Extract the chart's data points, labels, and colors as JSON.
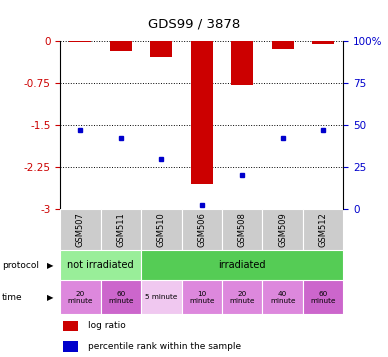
{
  "title": "GDS99 / 3878",
  "samples": [
    "GSM507",
    "GSM511",
    "GSM510",
    "GSM506",
    "GSM508",
    "GSM509",
    "GSM512"
  ],
  "log_ratios": [
    -0.02,
    -0.18,
    -0.28,
    -2.55,
    -0.78,
    -0.15,
    -0.05
  ],
  "percentile_ranks": [
    47,
    42,
    30,
    2,
    20,
    42,
    47
  ],
  "ylim": [
    -3.0,
    0.0
  ],
  "yticks_left": [
    0,
    -0.75,
    -1.5,
    -2.25,
    -3
  ],
  "ytick_labels_left": [
    "0",
    "-0.75",
    "-1.5",
    "-2.25",
    "-3"
  ],
  "yticks_right": [
    100,
    75,
    50,
    25,
    0
  ],
  "ytick_labels_right": [
    "100%",
    "75",
    "50",
    "25",
    "0"
  ],
  "bar_color": "#cc0000",
  "dot_color": "#0000cc",
  "bar_width": 0.55,
  "protocol_labels": [
    "not irradiated",
    "irradiated"
  ],
  "protocol_colors": [
    "#99ee99",
    "#55cc55"
  ],
  "time_labels": [
    "20\nminute",
    "60\nminute",
    "5 minute",
    "10\nminute",
    "20\nminute",
    "40\nminute",
    "60\nminute"
  ],
  "time_colors": [
    "#dd88dd",
    "#cc66cc",
    "#f0c8f0",
    "#dd88dd",
    "#dd88dd",
    "#dd88dd",
    "#cc66cc"
  ],
  "legend_log_ratio": "log ratio",
  "legend_percentile": "percentile rank within the sample",
  "tick_color_left": "#cc0000",
  "tick_color_right": "#0000cc",
  "sample_label_bg": "#cccccc",
  "bg_color": "#ffffff"
}
